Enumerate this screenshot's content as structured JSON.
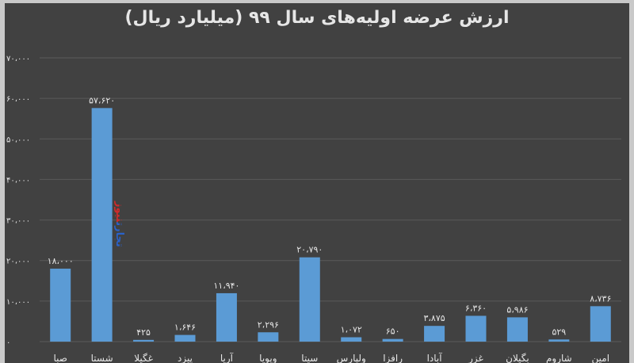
{
  "chart_data": {
    "type": "bar",
    "title": "ارزش عرضه اولیه‌های سال ۹۹ (میلیارد ریال)",
    "categories": [
      "صبا",
      "شستا",
      "غگیلا",
      "پیزد",
      "آریا",
      "وپویا",
      "سیتا",
      "ولپارس",
      "رافزا",
      "آبادا",
      "غزر",
      "بگیلان",
      "شاروم",
      "امین"
    ],
    "values": [
      18000,
      57620,
      425,
      1646,
      11940,
      2296,
      20790,
      1072,
      650,
      3875,
      6360,
      5986,
      529,
      8736
    ],
    "value_labels": [
      "۱۸،۰۰۰",
      "۵۷،۶۲۰",
      "۴۲۵",
      "۱،۶۴۶",
      "۱۱،۹۴۰",
      "۲،۲۹۶",
      "۲۰،۷۹۰",
      "۱،۰۷۲",
      "۶۵۰",
      "۳،۸۷۵",
      "۶،۳۶۰",
      "۵،۹۸۶",
      "۵۲۹",
      "۸،۷۳۶"
    ],
    "y_ticks": [
      0,
      10000,
      20000,
      30000,
      40000,
      50000,
      60000,
      70000
    ],
    "y_tick_labels": [
      "۰",
      "۱۰،۰۰۰",
      "۲۰،۰۰۰",
      "۳۰،۰۰۰",
      "۴۰،۰۰۰",
      "۵۰،۰۰۰",
      "۶۰،۰۰۰",
      "۷۰،۰۰۰"
    ],
    "ylim": [
      0,
      70000
    ],
    "grid": true,
    "xlabel": "",
    "ylabel": ""
  },
  "colors": {
    "background": "#414141",
    "bar": "#5b9bd5",
    "grid": "#5a5a5a",
    "text": "#e6e6e6"
  },
  "watermark": {
    "line1": "تجارت",
    "line2": "نیوز"
  }
}
